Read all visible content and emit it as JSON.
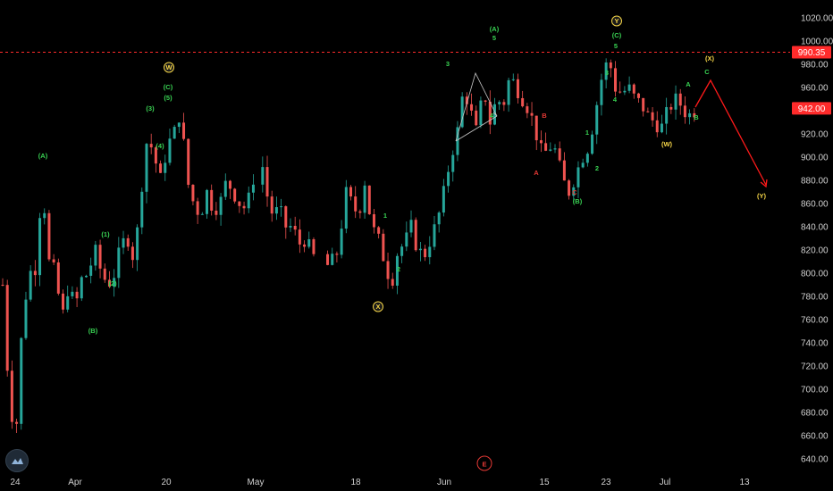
{
  "chart_data": {
    "type": "candlestick",
    "y_ticks": [
      "1020.00",
      "1000.00",
      "980.00",
      "960.00",
      "940.00",
      "920.00",
      "900.00",
      "880.00",
      "860.00",
      "840.00",
      "820.00",
      "800.00",
      "780.00",
      "760.00",
      "740.00",
      "720.00",
      "700.00",
      "680.00",
      "660.00",
      "640.00"
    ],
    "x_ticks": [
      "24",
      "Apr",
      "20",
      "May",
      "18",
      "Jun",
      "15",
      "23",
      "Jul",
      "13"
    ],
    "price_labels": [
      {
        "value": 990.35,
        "text": "990.35",
        "color": "#ff2b2b",
        "line": "dashed"
      },
      {
        "value": 942.0,
        "text": "942.00",
        "color": "#ff2b2b",
        "line": "none"
      }
    ],
    "ylim": [
      632,
      1030
    ],
    "colors": {
      "up": "#26a69a",
      "down": "#ef5350",
      "green_label": "#39d353",
      "red_label": "#e53935",
      "yellow_label": "#f5d547",
      "projection": "#ff1a1a"
    },
    "wave_labels": [
      {
        "text": "(A)",
        "color": "green"
      },
      {
        "text": "(1)",
        "color": "green"
      },
      {
        "text": "(2)",
        "color": "green"
      },
      {
        "text": "(B)",
        "color": "green"
      },
      {
        "text": "(3)",
        "color": "green"
      },
      {
        "text": "(4)",
        "color": "green"
      },
      {
        "text": "(5)",
        "color": "green"
      },
      {
        "text": "(C)",
        "color": "green"
      },
      {
        "text": "W",
        "color": "yellow",
        "circled": true
      },
      {
        "text": "1",
        "color": "green"
      },
      {
        "text": "2",
        "color": "green"
      },
      {
        "text": "X",
        "color": "yellow",
        "circled": true
      },
      {
        "text": "3",
        "color": "green"
      },
      {
        "text": "4",
        "color": "green"
      },
      {
        "text": "5",
        "color": "green"
      },
      {
        "text": "(A)",
        "color": "green"
      },
      {
        "text": "B",
        "color": "red"
      },
      {
        "text": "A",
        "color": "red"
      },
      {
        "text": "C",
        "color": "red"
      },
      {
        "text": "(B)",
        "color": "green"
      },
      {
        "text": "1",
        "color": "green"
      },
      {
        "text": "2",
        "color": "green"
      },
      {
        "text": "3",
        "color": "green"
      },
      {
        "text": "4",
        "color": "green"
      },
      {
        "text": "5",
        "color": "green"
      },
      {
        "text": "(C)",
        "color": "green"
      },
      {
        "text": "Y",
        "color": "yellow",
        "circled": true
      },
      {
        "text": "(W)",
        "color": "yellow"
      },
      {
        "text": "A",
        "color": "green"
      },
      {
        "text": "B",
        "color": "green"
      },
      {
        "text": "C",
        "color": "green"
      },
      {
        "text": "(X)",
        "color": "yellow"
      },
      {
        "text": "(Y)",
        "color": "yellow"
      }
    ],
    "marker": {
      "text": "E",
      "color": "#e53935"
    },
    "anchor_prices": [
      [
        790,
        690,
        660,
        760,
        800,
        805,
        880,
        810,
        800,
        760,
        790,
        770,
        795,
        800,
        820,
        800,
        790,
        800,
        825,
        830,
        810,
        870,
        920,
        900,
        880,
        910,
        920,
        940,
        880,
        860,
        850,
        870,
        855,
        860,
        880,
        870,
        860,
        855,
        880,
        910,
        870,
        850,
        855,
        840,
        840,
        825,
        830,
        815,
        810,
        805,
        810,
        820,
        870,
        860,
        850,
        880,
        840,
        830,
        810,
        790,
        820,
        825,
        840,
        820,
        815,
        830,
        845,
        870,
        900,
        920,
        960,
        940,
        920,
        960,
        930,
        950,
        945,
        970,
        960,
        950,
        940,
        920,
        900,
        910,
        905,
        880,
        870,
        885,
        900,
        910,
        940,
        970,
        985,
        960,
        955,
        960,
        950,
        945,
        935,
        930,
        925,
        940,
        950,
        945,
        935,
        940
      ],
      [
        0
      ]
    ]
  }
}
